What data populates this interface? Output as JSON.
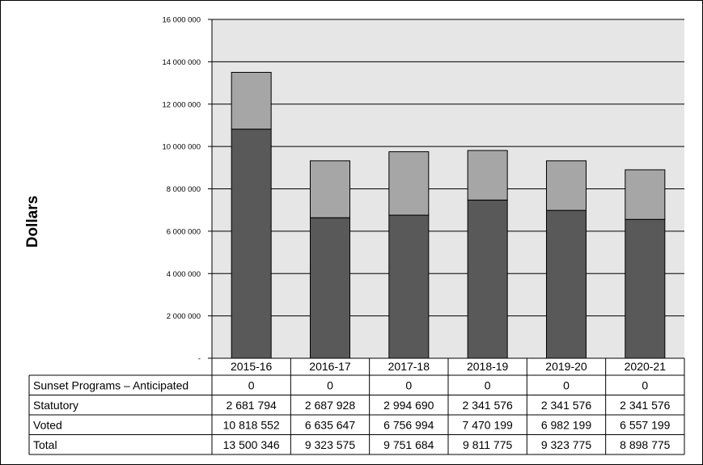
{
  "chart_data": {
    "type": "bar",
    "stacked": true,
    "ylabel": "Dollars",
    "ylim": [
      0,
      16000000
    ],
    "yticks": [
      "-",
      "2 000 000",
      "4 000 000",
      "6 000 000",
      "8 000 000",
      "10 000 000",
      "12 000 000",
      "14 000 000",
      "16 000 000"
    ],
    "grid": true,
    "categories": [
      "2015-16",
      "2016-17",
      "2017-18",
      "2018-19",
      "2019-20",
      "2020-21"
    ],
    "series": [
      {
        "name": "Voted",
        "values": [
          10818552,
          6635647,
          6756994,
          7470199,
          6982199,
          6557199
        ],
        "color": "#595959"
      },
      {
        "name": "Statutory",
        "values": [
          2681794,
          2687928,
          2994690,
          2341576,
          2341576,
          2341576
        ],
        "color": "#a6a6a6"
      },
      {
        "name": "Sunset Programs – Anticipated",
        "values": [
          0,
          0,
          0,
          0,
          0,
          0
        ],
        "color": "#ffffff"
      }
    ],
    "table": {
      "rows": [
        {
          "label": "Sunset Programs – Anticipated",
          "cells": [
            "0",
            "0",
            "0",
            "0",
            "0",
            "0"
          ]
        },
        {
          "label": "Statutory",
          "cells": [
            "2 681 794",
            "2 687 928",
            "2 994 690",
            "2 341 576",
            "2 341 576",
            "2 341 576"
          ]
        },
        {
          "label": "Voted",
          "cells": [
            "10 818 552",
            "6 635 647",
            "6 756 994",
            "7 470 199",
            "6 982 199",
            "6 557 199"
          ]
        },
        {
          "label": "Total",
          "cells": [
            "13 500 346",
            "9 323 575",
            "9 751 684",
            "9 811 775",
            "9 323 775",
            "8 898 775"
          ]
        }
      ]
    },
    "colors": {
      "plot_background": "#e6e6e6",
      "voted": "#595959",
      "statutory": "#a6a6a6",
      "gridline": "#000000"
    }
  }
}
